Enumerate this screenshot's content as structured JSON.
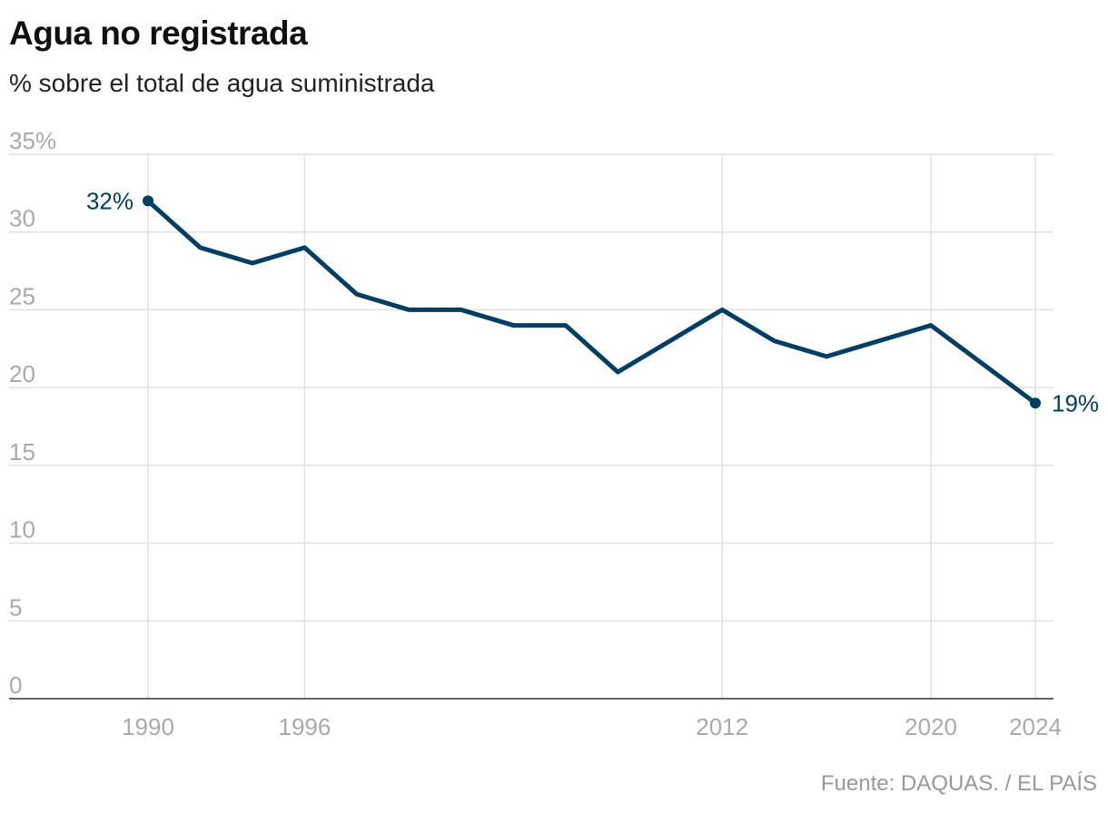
{
  "title": "Agua no registrada",
  "subtitle": "% sobre el total de agua suministrada",
  "source": "Fuente: DAQUAS. / EL PAÍS",
  "colors": {
    "line": "#003f63",
    "grid": "#e0e0e0",
    "axis": "#333333",
    "tick": "#aaaaaa"
  },
  "chart_data": {
    "type": "line",
    "title": "Agua no registrada",
    "subtitle": "% sobre el total de agua suministrada",
    "x": [
      1990,
      1992,
      1994,
      1996,
      1998,
      2000,
      2002,
      2004,
      2006,
      2008,
      2010,
      2012,
      2014,
      2016,
      2018,
      2020,
      2024
    ],
    "series": [
      {
        "values": [
          32,
          29,
          28,
          29,
          26,
          25,
          25,
          24,
          24,
          21,
          23,
          25,
          23,
          22,
          23,
          24,
          19
        ]
      }
    ],
    "xlim": [
      1985,
      2025
    ],
    "ylim": [
      0,
      35
    ],
    "x_ticks": [
      1990,
      1996,
      2012,
      2020,
      2024
    ],
    "y_ticks": [
      0,
      5,
      10,
      15,
      20,
      25,
      30,
      35
    ],
    "y_tick_labels": [
      "0",
      "5",
      "10",
      "15",
      "20",
      "25",
      "30",
      "35%"
    ],
    "annotations": [
      {
        "x": 1990,
        "y": 32,
        "text": "32%"
      },
      {
        "x": 2024,
        "y": 19,
        "text": "19%"
      }
    ],
    "grid": true
  }
}
